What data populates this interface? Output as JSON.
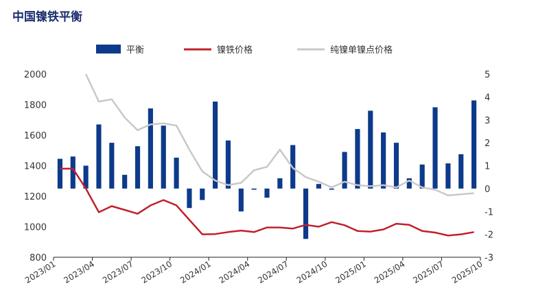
{
  "colors": {
    "bar": "#0d3a8a",
    "nickel_iron_price": "#c0202a",
    "pure_nickel_spread": "#c8c8c8",
    "title": "#1a2e6e"
  },
  "chart_data": {
    "type": "bar",
    "title": "中国镍铁平衡",
    "legend_position": "top",
    "grid": false,
    "x_tick_labels": [
      "2023/01",
      "2023/04",
      "2023/07",
      "2023/10",
      "2024/01",
      "2024/04",
      "2024/07",
      "2024/10",
      "2025/01",
      "2025/04",
      "2025/07",
      "2025/10"
    ],
    "left_axis": {
      "ylim": [
        800,
        2000
      ],
      "ticks": [
        800,
        1000,
        1200,
        1400,
        1600,
        1800,
        2000
      ]
    },
    "right_axis": {
      "ylim": [
        -3,
        5
      ],
      "ticks": [
        -3,
        -2,
        -1,
        0,
        1,
        2,
        3,
        4,
        5
      ]
    },
    "series": [
      {
        "name": "平衡",
        "type": "bar",
        "axis": "right",
        "values": [
          1.3,
          1.4,
          1.0,
          2.8,
          2.0,
          0.6,
          1.85,
          3.5,
          2.75,
          1.35,
          -0.85,
          -0.5,
          3.8,
          2.1,
          -1.0,
          -0.05,
          -0.4,
          0.45,
          1.9,
          -2.2,
          0.2,
          -0.05,
          1.6,
          2.6,
          3.4,
          2.45,
          2.0,
          0.45,
          1.05,
          3.55,
          1.1,
          1.5,
          3.85
        ]
      },
      {
        "name": "镍铁价格",
        "type": "line",
        "axis": "left",
        "values": [
          1380,
          1380,
          1250,
          1095,
          1135,
          1110,
          1085,
          1140,
          1175,
          1140,
          1045,
          950,
          952,
          965,
          975,
          965,
          995,
          995,
          988,
          1012,
          1000,
          1030,
          1010,
          972,
          968,
          982,
          1020,
          1012,
          972,
          962,
          942,
          950,
          965
        ]
      },
      {
        "name": "纯镍单镍点价格",
        "type": "line",
        "axis": "right",
        "values": [
          null,
          null,
          5.0,
          3.8,
          3.9,
          3.1,
          2.55,
          2.8,
          2.85,
          2.75,
          1.7,
          0.75,
          0.35,
          0.15,
          0.25,
          0.8,
          0.95,
          1.7,
          0.9,
          0.5,
          0.3,
          0.05,
          0.3,
          0.15,
          0.1,
          0.15,
          0.05,
          0.35,
          0.05,
          -0.05,
          -0.3,
          -0.25,
          -0.2
        ]
      }
    ]
  }
}
